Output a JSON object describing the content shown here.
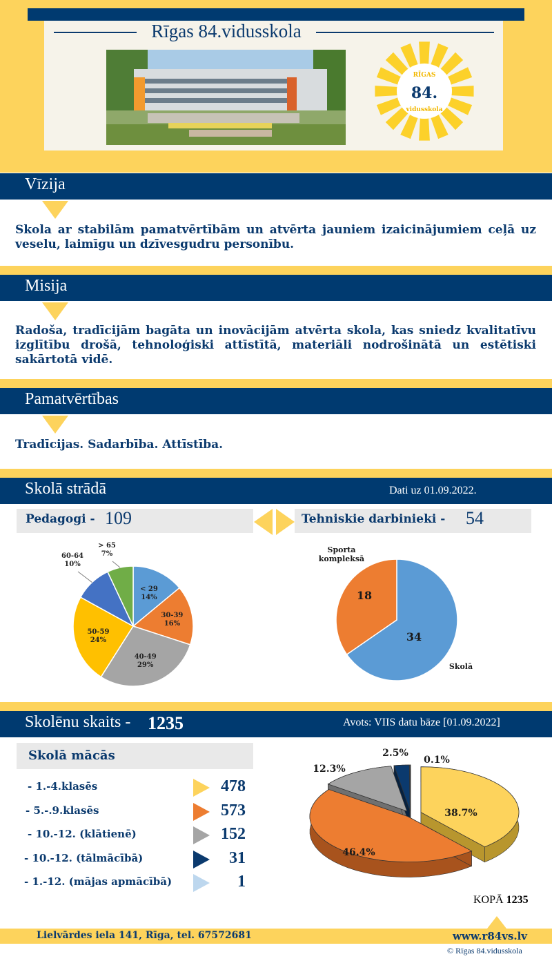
{
  "header": {
    "school_name": "Rīgas 84.vidusskola",
    "logo_top": "RĪGAS",
    "logo_number": "84.",
    "logo_bottom": "vidusskola"
  },
  "vision": {
    "title": "Vīzija",
    "text": "Skola ar stabilām pamatvērtībām un atvērta jauniem izaicinājumiem ceļā uz veselu, laimīgu un dzīvesgudru personību."
  },
  "mission": {
    "title": "Misija",
    "text": "Radoša, tradīcijām bagāta un inovācijām atvērta skola, kas sniedz kvalitatīvu izglītību drošā, tehnoloģiski attīstītā, materiāli nodrošinātā un estētiski sakārtotā vidē."
  },
  "values": {
    "title": "Pamatvērtības",
    "text": "Tradīcijas. Sadarbība. Attīstība."
  },
  "staff": {
    "title": "Skolā strādā",
    "date_note": "Dati uz 01.09.2022.",
    "teachers_label": "Pedagogi -",
    "teachers_count": "109",
    "technical_label": "Tehniskie darbinieki -",
    "technical_count": "54"
  },
  "students": {
    "title": "Skolēnu skaits -",
    "total": "1235",
    "source": "Avots: VIIS datu bāze [01.09.2022]",
    "subtitle": "Skolā mācās",
    "rows": [
      {
        "label": "- 1.-4.klasēs",
        "value": "478",
        "color": "#fdd35c"
      },
      {
        "label": "- 5.-.9.klasēs",
        "value": "573",
        "color": "#ed7d31"
      },
      {
        "label": "- 10.-12. (klātienē)",
        "value": "152",
        "color": "#a5a5a5"
      },
      {
        "label": "- 10.-12. (tālmācībā)",
        "value": "31",
        "color": "#0b3a6e"
      },
      {
        "label": "- 1.-12. (mājas apmācībā)",
        "value": "1",
        "color": "#bdd7ee"
      }
    ],
    "total_label": "KOPĀ",
    "total_value": "1235"
  },
  "footer": {
    "address": "Lielvārdes iela 141, Rīga, tel. 67572681",
    "website": "www.r84vs.lv",
    "copyright": "© Rīgas 84.vidusskola"
  },
  "chart_data": [
    {
      "type": "pie",
      "title": "",
      "labels": [
        "< 29",
        "30-39",
        "40-49",
        "50-59",
        "60-64",
        "> 65"
      ],
      "values": [
        14,
        16,
        29,
        24,
        10,
        7
      ],
      "value_labels": [
        "14%",
        "16%",
        "29%",
        "24%",
        "10%",
        "7%"
      ],
      "colors": [
        "#5b9bd5",
        "#ed7d31",
        "#a5a5a5",
        "#ffc000",
        "#4472c4",
        "#70ad47"
      ]
    },
    {
      "type": "pie",
      "title": "",
      "labels": [
        "Skolā",
        "Sporta kompleksā"
      ],
      "values": [
        34,
        18
      ],
      "colors": [
        "#5b9bd5",
        "#ed7d31"
      ]
    },
    {
      "type": "pie",
      "title": "",
      "labels": [
        "1.-4.klasēs",
        "5.-.9.klasēs",
        "10.-12. (klātienē)",
        "10.-12. (tālmācībā)",
        "1.-12. (mājas apmācībā)"
      ],
      "values": [
        38.7,
        46.4,
        12.3,
        2.5,
        0.1
      ],
      "value_labels": [
        "38.7%",
        "46.4%",
        "12.3%",
        "2.5%",
        "0.1%"
      ],
      "colors": [
        "#fdd35c",
        "#ed7d31",
        "#a5a5a5",
        "#0b3a6e",
        "#bdd7ee"
      ]
    }
  ]
}
